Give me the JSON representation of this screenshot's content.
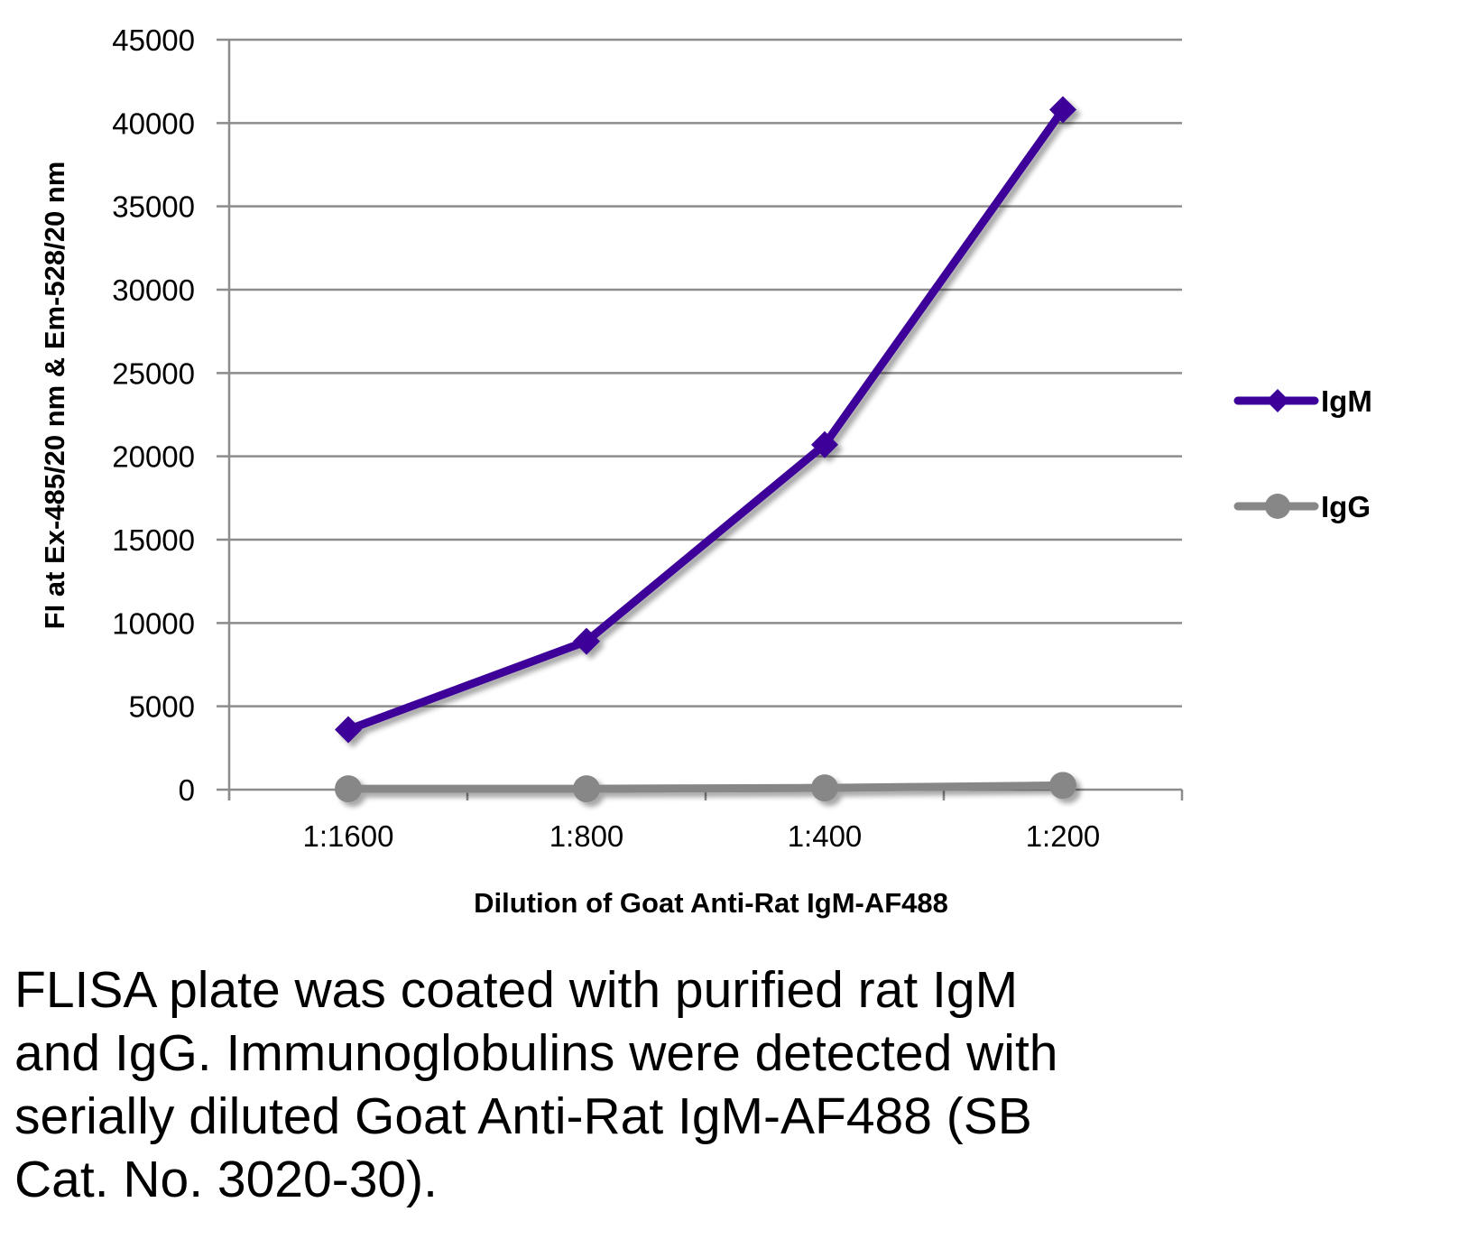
{
  "chart_data": {
    "type": "line",
    "title": "",
    "xlabel": "Dilution of Goat Anti-Rat IgM-AF488",
    "ylabel": "FI at Ex-485/20 nm & Em-528/20 nm",
    "categories": [
      "1:1600",
      "1:800",
      "1:400",
      "1:200"
    ],
    "ylim": [
      0,
      45000
    ],
    "yticks": [
      0,
      5000,
      10000,
      15000,
      20000,
      25000,
      30000,
      35000,
      40000,
      45000
    ],
    "ytick_labels": [
      "0",
      "5000",
      "10000",
      "15000",
      "20000",
      "25000",
      "30000",
      "35000",
      "40000",
      "45000"
    ],
    "grid": true,
    "legend_position": "right",
    "series": [
      {
        "name": "IgM",
        "marker": "diamond",
        "color": "#3d0099",
        "values": [
          3600,
          8900,
          20700,
          40800
        ]
      },
      {
        "name": "IgG",
        "marker": "circle",
        "color": "#878787",
        "values": [
          50,
          50,
          100,
          250
        ]
      }
    ]
  },
  "colors": {
    "grid": "#8c8c8c",
    "axis": "#8c8c8c",
    "shadow": "#9a9a9a"
  },
  "caption": {
    "lines": [
      "FLISA plate was coated with purified rat IgM",
      "and IgG.  Immunoglobulins were detected with",
      "serially diluted Goat Anti-Rat IgM-AF488 (SB",
      "Cat. No. 3020-30)."
    ]
  }
}
